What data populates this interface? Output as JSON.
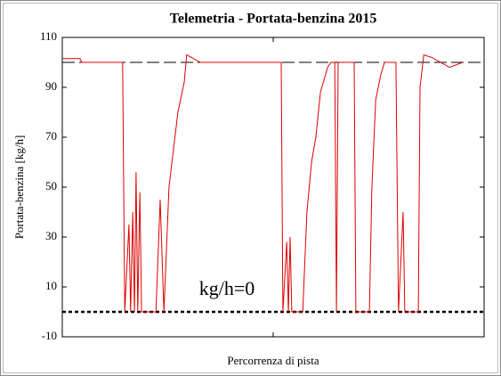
{
  "chart_data": {
    "type": "line",
    "title": "Telemetria - Portata-benzina 2015",
    "xlabel": "Percorrenza di pista",
    "ylabel": "Portata-benzina  [kg/h]",
    "annotation": "kg/h=0",
    "xlim": [
      0,
      100
    ],
    "ylim": [
      -10,
      110
    ],
    "yticks": [
      -10,
      10,
      30,
      50,
      70,
      90,
      110
    ],
    "reference_lines": [
      100,
      0
    ],
    "series": [
      {
        "color": "#dd0000",
        "x": [
          0,
          4.2,
          4.6,
          14.3,
          14.8,
          15.8,
          16.2,
          16.7,
          17.1,
          17.5,
          17.9,
          18.4,
          18.8,
          22.2,
          23.2,
          24.1,
          25.3,
          27.4,
          28.9,
          29.5,
          30.6,
          32.7,
          51.9,
          52.3,
          53.2,
          53.6,
          54.0,
          54.4,
          57.0,
          58.0,
          59.1,
          60.1,
          61.2,
          62.9,
          63.7,
          64.6,
          65.0,
          65.4,
          69.2,
          69.6,
          72.8,
          73.4,
          74.3,
          75.5,
          76.4,
          79.1,
          79.7,
          80.8,
          81.2,
          84.4,
          84.8,
          85.7,
          87.6,
          89.7,
          91.8,
          94.9
        ],
        "values": [
          101.5,
          101.5,
          100,
          100,
          0,
          35,
          0,
          40,
          0,
          56,
          0,
          48,
          0,
          0,
          45,
          0,
          50,
          80,
          92,
          103,
          102,
          100,
          100,
          0,
          28,
          0,
          30,
          0,
          0,
          40,
          60,
          70,
          88,
          98,
          100,
          100,
          0,
          100,
          100,
          0,
          0,
          50,
          85,
          95,
          100,
          100,
          0,
          40,
          0,
          0,
          90,
          103,
          102,
          100,
          98,
          100
        ]
      }
    ]
  }
}
